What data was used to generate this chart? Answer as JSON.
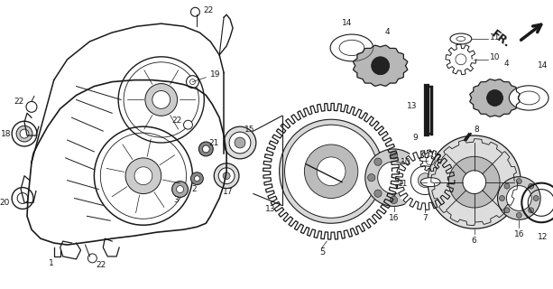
{
  "background_color": "#ffffff",
  "fig_width": 6.13,
  "fig_height": 3.2,
  "dpi": 100,
  "line_color": "#1a1a1a",
  "label_fontsize": 6.5
}
